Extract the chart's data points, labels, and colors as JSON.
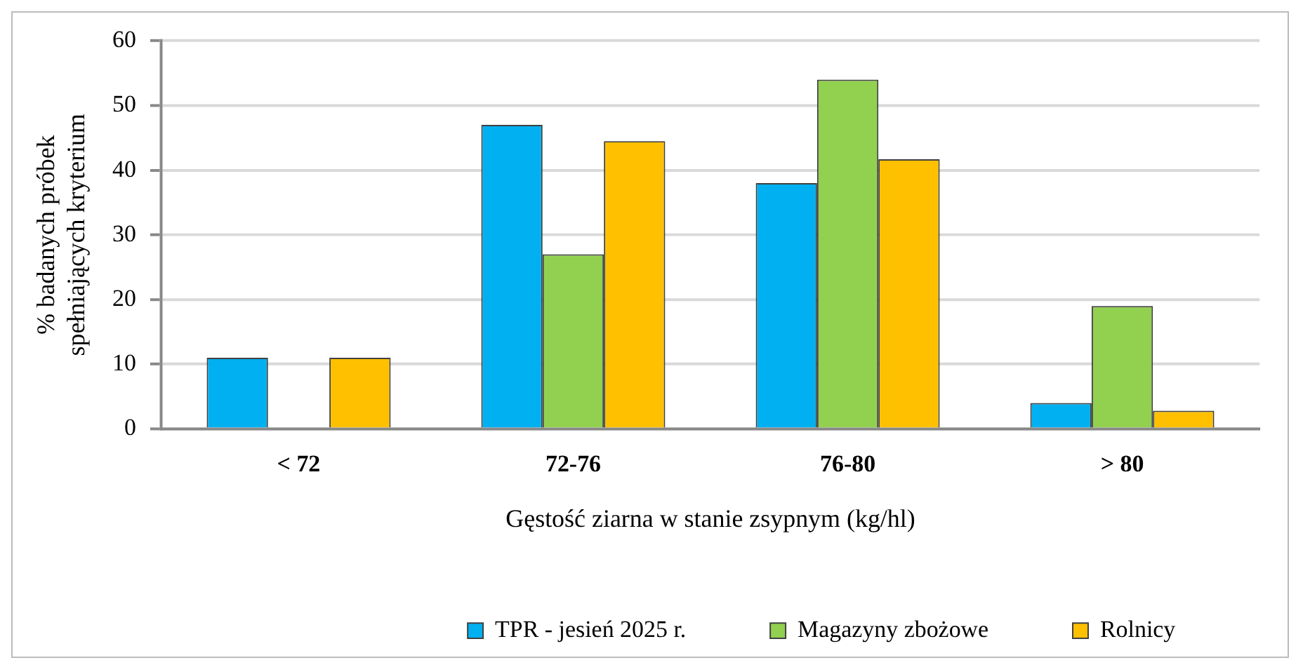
{
  "chart_data": {
    "type": "bar",
    "xlabel": "Gęstość ziarna w stanie zsypnym (kg/hl)",
    "ylabel": "% badanych próbek spełniających kryterium",
    "categories": [
      "< 72",
      "72-76",
      "76-80",
      "> 80"
    ],
    "series": [
      {
        "name": "TPR - jesień 2025 r.",
        "color": "#00b0f0",
        "values": [
          11,
          47,
          38,
          4
        ]
      },
      {
        "name": "Magazyny zbożowe",
        "color": "#92d050",
        "values": [
          0,
          27,
          54,
          19
        ]
      },
      {
        "name": "Rolnicy",
        "color": "#ffc000",
        "values": [
          11,
          44.5,
          41.7,
          2.8
        ]
      }
    ],
    "ylim": [
      0,
      60
    ],
    "yticks": [
      0,
      10,
      20,
      30,
      40,
      50,
      60
    ],
    "grid": "y",
    "legend": "bottom"
  }
}
